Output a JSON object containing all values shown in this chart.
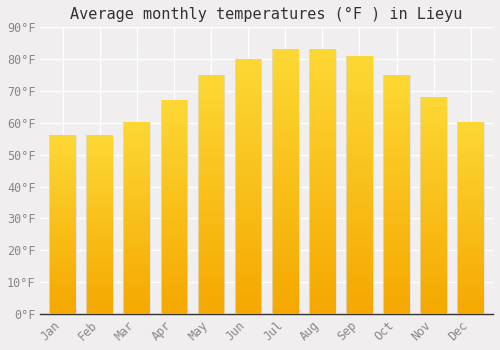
{
  "title": "Average monthly temperatures (°F ) in Lieyu",
  "months": [
    "Jan",
    "Feb",
    "Mar",
    "Apr",
    "May",
    "Jun",
    "Jul",
    "Aug",
    "Sep",
    "Oct",
    "Nov",
    "Dec"
  ],
  "values": [
    56,
    56,
    60,
    67,
    75,
    80,
    83,
    83,
    81,
    75,
    68,
    60
  ],
  "bar_color_top": "#FDD835",
  "bar_color_bottom": "#F5A800",
  "ylim": [
    0,
    90
  ],
  "yticks": [
    0,
    10,
    20,
    30,
    40,
    50,
    60,
    70,
    80,
    90
  ],
  "ytick_labels": [
    "0°F",
    "10°F",
    "20°F",
    "30°F",
    "40°F",
    "50°F",
    "60°F",
    "70°F",
    "80°F",
    "90°F"
  ],
  "background_color": "#f0eeee",
  "grid_color": "#ffffff",
  "title_fontsize": 11,
  "tick_fontsize": 8.5,
  "font_family": "monospace",
  "tick_color": "#888888",
  "spine_color": "#333333"
}
